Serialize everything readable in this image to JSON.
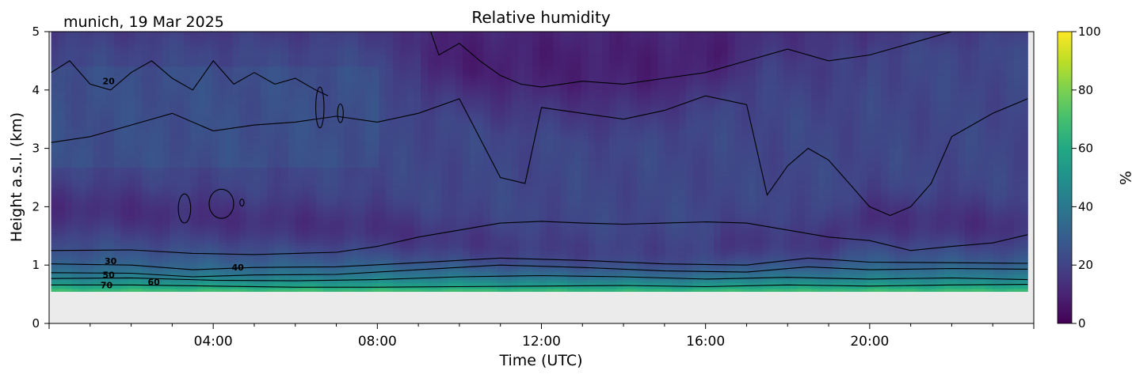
{
  "chart_data": {
    "type": "heatmap",
    "title": "Relative humidity",
    "subtitle": "munich, 19 Mar 2025",
    "xlabel": "Time (UTC)",
    "ylabel": "Height a.s.l. (km)",
    "xlim": [
      0,
      24
    ],
    "ylim": [
      0,
      5
    ],
    "x_ticks": [
      {
        "value": 4,
        "label": "04:00"
      },
      {
        "value": 8,
        "label": "08:00"
      },
      {
        "value": 12,
        "label": "12:00"
      },
      {
        "value": 16,
        "label": "16:00"
      },
      {
        "value": 20,
        "label": "20:00"
      }
    ],
    "y_ticks": [
      {
        "value": 0,
        "label": "0"
      },
      {
        "value": 1,
        "label": "1"
      },
      {
        "value": 2,
        "label": "2"
      },
      {
        "value": 3,
        "label": "3"
      },
      {
        "value": 4,
        "label": "4"
      },
      {
        "value": 5,
        "label": "5"
      }
    ],
    "colorbar": {
      "label": "%",
      "colormap": "viridis",
      "range": [
        0,
        100
      ],
      "ticks": [
        {
          "value": 0,
          "label": "0"
        },
        {
          "value": 20,
          "label": "20"
        },
        {
          "value": 40,
          "label": "40"
        },
        {
          "value": 60,
          "label": "60"
        },
        {
          "value": 80,
          "label": "80"
        },
        {
          "value": 100,
          "label": "100"
        }
      ]
    },
    "no_data_below_km": 0.55,
    "data_time_range": [
      0.05,
      23.85
    ],
    "contour_labels": [
      {
        "text": "30",
        "x": 1.5,
        "y": 1.07
      },
      {
        "text": "50",
        "x": 1.45,
        "y": 0.83
      },
      {
        "text": "70",
        "x": 1.4,
        "y": 0.66
      },
      {
        "text": "60",
        "x": 2.55,
        "y": 0.71
      },
      {
        "text": "40",
        "x": 4.6,
        "y": 0.96
      },
      {
        "text": "20",
        "x": 1.45,
        "y": 4.15
      }
    ],
    "contours": [
      {
        "level": 70,
        "points": [
          [
            0.05,
            0.66
          ],
          [
            2,
            0.66
          ],
          [
            4,
            0.64
          ],
          [
            6,
            0.62
          ],
          [
            8,
            0.62
          ],
          [
            10,
            0.63
          ],
          [
            12,
            0.64
          ],
          [
            14,
            0.65
          ],
          [
            16,
            0.63
          ],
          [
            18,
            0.66
          ],
          [
            20,
            0.64
          ],
          [
            22,
            0.66
          ],
          [
            23.85,
            0.67
          ]
        ]
      },
      {
        "level": 60,
        "points": [
          [
            0.05,
            0.77
          ],
          [
            2,
            0.78
          ],
          [
            4,
            0.74
          ],
          [
            6,
            0.73
          ],
          [
            8,
            0.75
          ],
          [
            10,
            0.8
          ],
          [
            12,
            0.82
          ],
          [
            14,
            0.8
          ],
          [
            16,
            0.76
          ],
          [
            18,
            0.79
          ],
          [
            20,
            0.76
          ],
          [
            22,
            0.78
          ],
          [
            23.85,
            0.75
          ]
        ]
      },
      {
        "level": 50,
        "points": [
          [
            0.05,
            0.87
          ],
          [
            2,
            0.86
          ],
          [
            3.5,
            0.8
          ],
          [
            5,
            0.83
          ],
          [
            7,
            0.84
          ],
          [
            9,
            0.92
          ],
          [
            11,
            1.0
          ],
          [
            13,
            0.96
          ],
          [
            15,
            0.9
          ],
          [
            17,
            0.88
          ],
          [
            18.5,
            0.97
          ],
          [
            20,
            0.92
          ],
          [
            22,
            0.94
          ],
          [
            23.85,
            0.93
          ]
        ]
      },
      {
        "level": 40,
        "points": [
          [
            0.05,
            1.02
          ],
          [
            2,
            1.0
          ],
          [
            3.5,
            0.92
          ],
          [
            5,
            0.96
          ],
          [
            7,
            0.97
          ],
          [
            9,
            1.04
          ],
          [
            11,
            1.12
          ],
          [
            13,
            1.08
          ],
          [
            15,
            1.02
          ],
          [
            17,
            1.0
          ],
          [
            18.5,
            1.12
          ],
          [
            20,
            1.05
          ],
          [
            22,
            1.04
          ],
          [
            23.85,
            1.03
          ]
        ]
      },
      {
        "level": 30,
        "points": [
          [
            0.05,
            1.25
          ],
          [
            2,
            1.26
          ],
          [
            3.5,
            1.2
          ],
          [
            5,
            1.18
          ],
          [
            7,
            1.22
          ],
          [
            8,
            1.32
          ],
          [
            9,
            1.48
          ],
          [
            10,
            1.6
          ],
          [
            11,
            1.72
          ],
          [
            12,
            1.75
          ],
          [
            13,
            1.72
          ],
          [
            14,
            1.7
          ],
          [
            15,
            1.72
          ],
          [
            16,
            1.74
          ],
          [
            17,
            1.72
          ],
          [
            18,
            1.6
          ],
          [
            19,
            1.48
          ],
          [
            20,
            1.42
          ],
          [
            21,
            1.25
          ],
          [
            22,
            1.32
          ],
          [
            23,
            1.38
          ],
          [
            23.85,
            1.52
          ]
        ]
      },
      {
        "level": 20,
        "points": [
          [
            0.05,
            3.1
          ],
          [
            1,
            3.2
          ],
          [
            2,
            3.4
          ],
          [
            3,
            3.6
          ],
          [
            4,
            3.3
          ],
          [
            5,
            3.4
          ],
          [
            6,
            3.45
          ],
          [
            7,
            3.55
          ],
          [
            8,
            3.45
          ],
          [
            9,
            3.6
          ],
          [
            10,
            3.85
          ],
          [
            11,
            2.5
          ],
          [
            11.6,
            2.4
          ],
          [
            12,
            3.7
          ],
          [
            13,
            3.6
          ],
          [
            14,
            3.5
          ],
          [
            15,
            3.65
          ],
          [
            16,
            3.9
          ],
          [
            17,
            3.75
          ],
          [
            17.5,
            2.2
          ],
          [
            18,
            2.7
          ],
          [
            18.5,
            3.0
          ],
          [
            19,
            2.8
          ],
          [
            19.5,
            2.4
          ],
          [
            20,
            2.0
          ],
          [
            20.5,
            1.85
          ],
          [
            21,
            2.0
          ],
          [
            21.5,
            2.4
          ],
          [
            22,
            3.2
          ],
          [
            23,
            3.6
          ],
          [
            23.85,
            3.85
          ]
        ]
      },
      {
        "level": 20,
        "points": [
          [
            0.05,
            4.3
          ],
          [
            0.5,
            4.5
          ],
          [
            1,
            4.1
          ],
          [
            1.5,
            4.0
          ],
          [
            2,
            4.3
          ],
          [
            2.5,
            4.5
          ],
          [
            3,
            4.2
          ],
          [
            3.5,
            4.0
          ],
          [
            4,
            4.5
          ],
          [
            4.5,
            4.1
          ],
          [
            5,
            4.3
          ],
          [
            5.5,
            4.1
          ],
          [
            6,
            4.2
          ],
          [
            6.5,
            4.0
          ],
          [
            6.8,
            3.9
          ]
        ]
      },
      {
        "level": 20,
        "points": [
          [
            9.3,
            5.0
          ],
          [
            9.5,
            4.6
          ],
          [
            10,
            4.8
          ],
          [
            10.5,
            4.5
          ],
          [
            11,
            4.25
          ],
          [
            11.5,
            4.1
          ],
          [
            12,
            4.05
          ],
          [
            12.5,
            4.1
          ],
          [
            13,
            4.15
          ],
          [
            14,
            4.1
          ],
          [
            15,
            4.2
          ],
          [
            16,
            4.3
          ],
          [
            17,
            4.5
          ],
          [
            18,
            4.7
          ],
          [
            19,
            4.5
          ],
          [
            20,
            4.6
          ],
          [
            21,
            4.8
          ],
          [
            22,
            5.0
          ]
        ]
      }
    ],
    "islands": [
      {
        "cx": 3.3,
        "cy": 1.97,
        "rx": 0.15,
        "ry": 0.25
      },
      {
        "cx": 4.2,
        "cy": 2.05,
        "rx": 0.3,
        "ry": 0.25
      },
      {
        "cx": 4.7,
        "cy": 2.07,
        "rx": 0.05,
        "ry": 0.06
      },
      {
        "cx": 7.1,
        "cy": 3.6,
        "rx": 0.07,
        "ry": 0.16
      },
      {
        "cx": 6.6,
        "cy": 3.7,
        "rx": 0.1,
        "ry": 0.35
      }
    ]
  }
}
